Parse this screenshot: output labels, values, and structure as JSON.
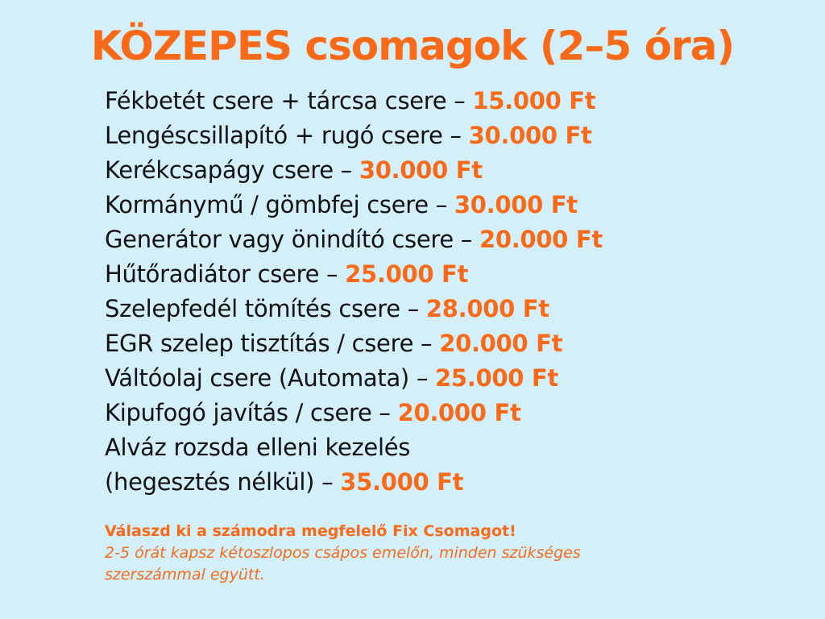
{
  "title": "KÖZEPES csomagok (2–5 óra)",
  "separator": " – ",
  "lines": [
    {
      "text": "Fékbetét csere + tárcsa csere",
      "price": "15.000 Ft"
    },
    {
      "text": "Lengéscsillapító + rugó csere",
      "price": "30.000 Ft"
    },
    {
      "text": "Kerékcsapágy csere",
      "price": "30.000 Ft"
    },
    {
      "text": "Kormánymű / gömbfej csere",
      "price": "30.000 Ft"
    },
    {
      "text": "Generátor vagy önindító csere",
      "price": "20.000 Ft"
    },
    {
      "text": "Hűtőradiátor csere",
      "price": "25.000 Ft"
    },
    {
      "text": "Szelepfedél tömítés csere",
      "price": "28.000 Ft"
    },
    {
      "text": "EGR szelep tisztítás / csere",
      "price": "20.000 Ft"
    },
    {
      "text": "Váltóolaj csere (Automata)",
      "price": "25.000 Ft"
    },
    {
      "text": "Kipufogó javítás / csere",
      "price": "20.000 Ft"
    },
    {
      "text": "Alváz rozsda elleni kezelés",
      "price": null
    },
    {
      "text": "(hegesztés nélkül)",
      "price": "35.000 Ft"
    }
  ],
  "note": {
    "headline": "Válaszd ki a számodra megfelelő Fix Csomagot!",
    "body": "2-5 órát kapsz kétoszlopos csápos emelőn, minden szükséges szerszámmal együtt."
  },
  "colors": {
    "background": "#d3eff9",
    "accent": "#f96a18",
    "text": "#111111"
  }
}
